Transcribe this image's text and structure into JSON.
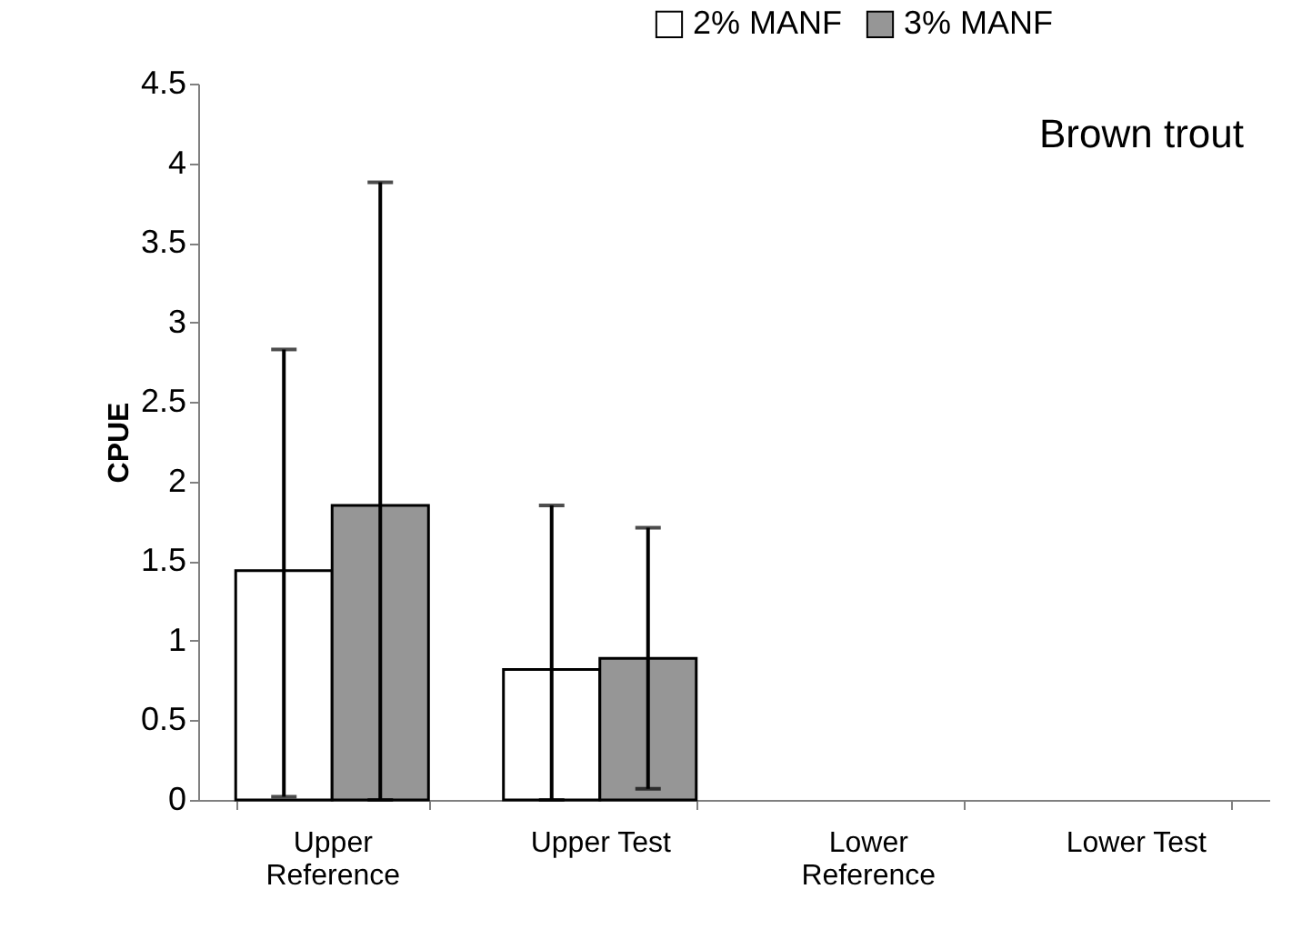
{
  "chart_data": {
    "type": "bar",
    "ylabel": "CPUE",
    "categories": [
      "Upper Reference",
      "Upper Test",
      "Lower Reference",
      "Lower Test"
    ],
    "series": [
      {
        "name": "2% MANF",
        "color": "#ffffff",
        "values": [
          1.44,
          0.82,
          0,
          0
        ],
        "errors": [
          [
            0.02,
            2.83
          ],
          [
            0,
            1.85
          ],
          null,
          null
        ]
      },
      {
        "name": "3% MANF",
        "color": "#969696",
        "values": [
          1.85,
          0.89,
          0,
          0
        ],
        "errors": [
          [
            0,
            3.88
          ],
          0.82,
          null,
          null
        ]
      }
    ],
    "ylim": [
      0,
      4.5
    ],
    "yticks": [
      0,
      0.5,
      1,
      1.5,
      2,
      2.5,
      3,
      3.5,
      4,
      4.5
    ],
    "annotations": [
      "Brown trout"
    ],
    "legend": "top right",
    "grid": false
  }
}
